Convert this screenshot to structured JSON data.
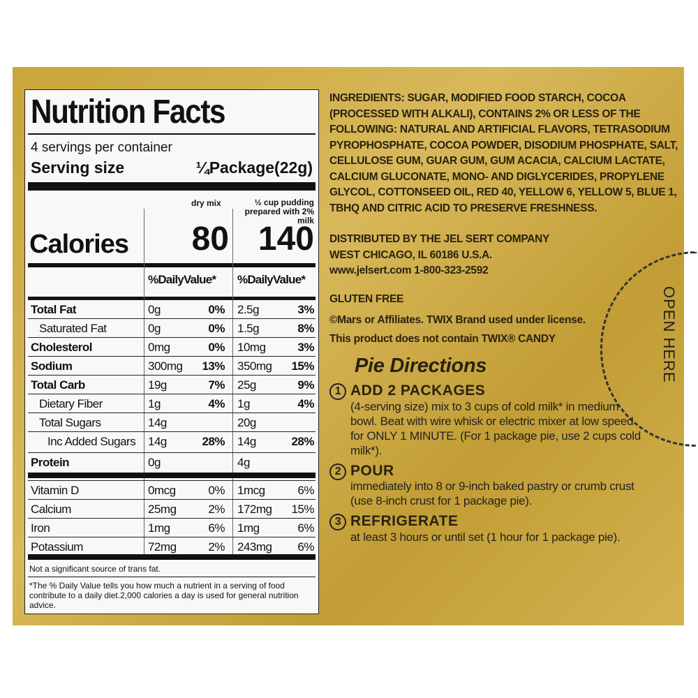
{
  "label": {
    "title": "Nutrition Facts",
    "servings": "4 servings per container",
    "serving_size_label": "Serving size",
    "serving_size": "¼Package(22g)",
    "col1_head": "dry mix",
    "col2_head": "½ cup pudding prepared with 2% milk",
    "calories_label": "Calories",
    "cal1": "80",
    "cal2": "140",
    "dv1": "%DailyValue*",
    "dv2": "%DailyValue*",
    "rows": [
      {
        "name": "Total Fat",
        "bold": true,
        "a1": "0g",
        "p1": "0%",
        "a2": "2.5g",
        "p2": "3%"
      },
      {
        "name": "Saturated Fat",
        "indent": 1,
        "a1": "0g",
        "p1": "0%",
        "a2": "1.5g",
        "p2": "8%"
      },
      {
        "name": "Cholesterol",
        "bold": true,
        "a1": "0mg",
        "p1": "0%",
        "a2": "10mg",
        "p2": "3%"
      },
      {
        "name": "Sodium",
        "bold": true,
        "a1": "300mg",
        "p1": "13%",
        "a2": "350mg",
        "p2": "15%"
      },
      {
        "name": "Total Carb",
        "bold": true,
        "a1": "19g",
        "p1": "7%",
        "a2": "25g",
        "p2": "9%"
      },
      {
        "name": "Dietary Fiber",
        "indent": 1,
        "a1": "1g",
        "p1": "4%",
        "a2": "1g",
        "p2": "4%"
      },
      {
        "name": "Total Sugars",
        "indent": 1,
        "a1": "14g",
        "p1": "",
        "a2": "20g",
        "p2": ""
      },
      {
        "name": "Inc Added Sugars",
        "indent": 2,
        "a1": "14g",
        "p1": "28%",
        "a2": "14g",
        "p2": "28%"
      },
      {
        "name": "Protein",
        "bold": true,
        "a1": "0g",
        "p1": "",
        "a2": "4g",
        "p2": ""
      },
      {
        "name": "Vitamin D",
        "a1": "0mcg",
        "p1": "0%",
        "a2": "1mcg",
        "p2": "6%",
        "plain": true
      },
      {
        "name": "Calcium",
        "a1": "25mg",
        "p1": "2%",
        "a2": "172mg",
        "p2": "15%",
        "plain": true
      },
      {
        "name": "Iron",
        "a1": "1mg",
        "p1": "6%",
        "a2": "1mg",
        "p2": "6%",
        "plain": true
      },
      {
        "name": "Potassium",
        "a1": "72mg",
        "p1": "2%",
        "a2": "243mg",
        "p2": "6%",
        "plain": true
      }
    ],
    "trans_note": "Not a significant source of trans fat.",
    "footnote": "*The % Daily Value tells you how much a nutrient in a serving of food contribute to a daily diet.2,000 calories a day is used for general nutrition advice."
  },
  "ingredients": "INGREDIENTS: SUGAR, MODIFIED FOOD STARCH, COCOA (PROCESSED WITH ALKALI), CONTAINS 2% OR LESS OF THE FOLLOWING: NATURAL AND ARTIFICIAL FLAVORS, TETRASODIUM PYROPHOSPHATE, COCOA POWDER, DISODIUM PHOSPHATE, SALT, CELLULOSE GUM, GUAR GUM, GUM ACACIA, CALCIUM LACTATE, CALCIUM GLUCONATE, MONO- AND DIGLYCERIDES, PROPYLENE GLYCOL, COTTONSEED OIL, RED 40, YELLOW 6, YELLOW 5, BLUE 1, TBHQ AND CITRIC ACID TO PRESERVE FRESHNESS.",
  "distributor": [
    "DISTRIBUTED BY THE JEL SERT COMPANY",
    "WEST CHICAGO, IL 60186 U.S.A.",
    "www.jelsert.com  1-800-323-2592"
  ],
  "gluten": "GLUTEN FREE",
  "license": "©Mars or Affiliates.  TWIX Brand used under license.",
  "disclaimer": "This product does not contain TWIX® CANDY",
  "directions_title": "Pie Directions",
  "steps": [
    {
      "n": "1",
      "head": "ADD 2 PACKAGES",
      "body": "(4-serving size) mix to 3 cups of cold milk* in medium bowl.  Beat with wire whisk or electric mixer at low speed for ONLY 1 MINUTE. (For 1 package pie, use 2 cups cold milk*)."
    },
    {
      "n": "2",
      "head": "POUR",
      "body": "immediately into 8 or 9-inch baked pastry or crumb crust (use 8-inch crust for 1 package pie)."
    },
    {
      "n": "3",
      "head": "REFRIGERATE",
      "body": "at least 3 hours or until set (1 hour for 1 package pie)."
    }
  ],
  "open_here": "OPEN HERE",
  "colors": {
    "gold": "#c9a53a",
    "label_bg": "#f8f8f8"
  }
}
